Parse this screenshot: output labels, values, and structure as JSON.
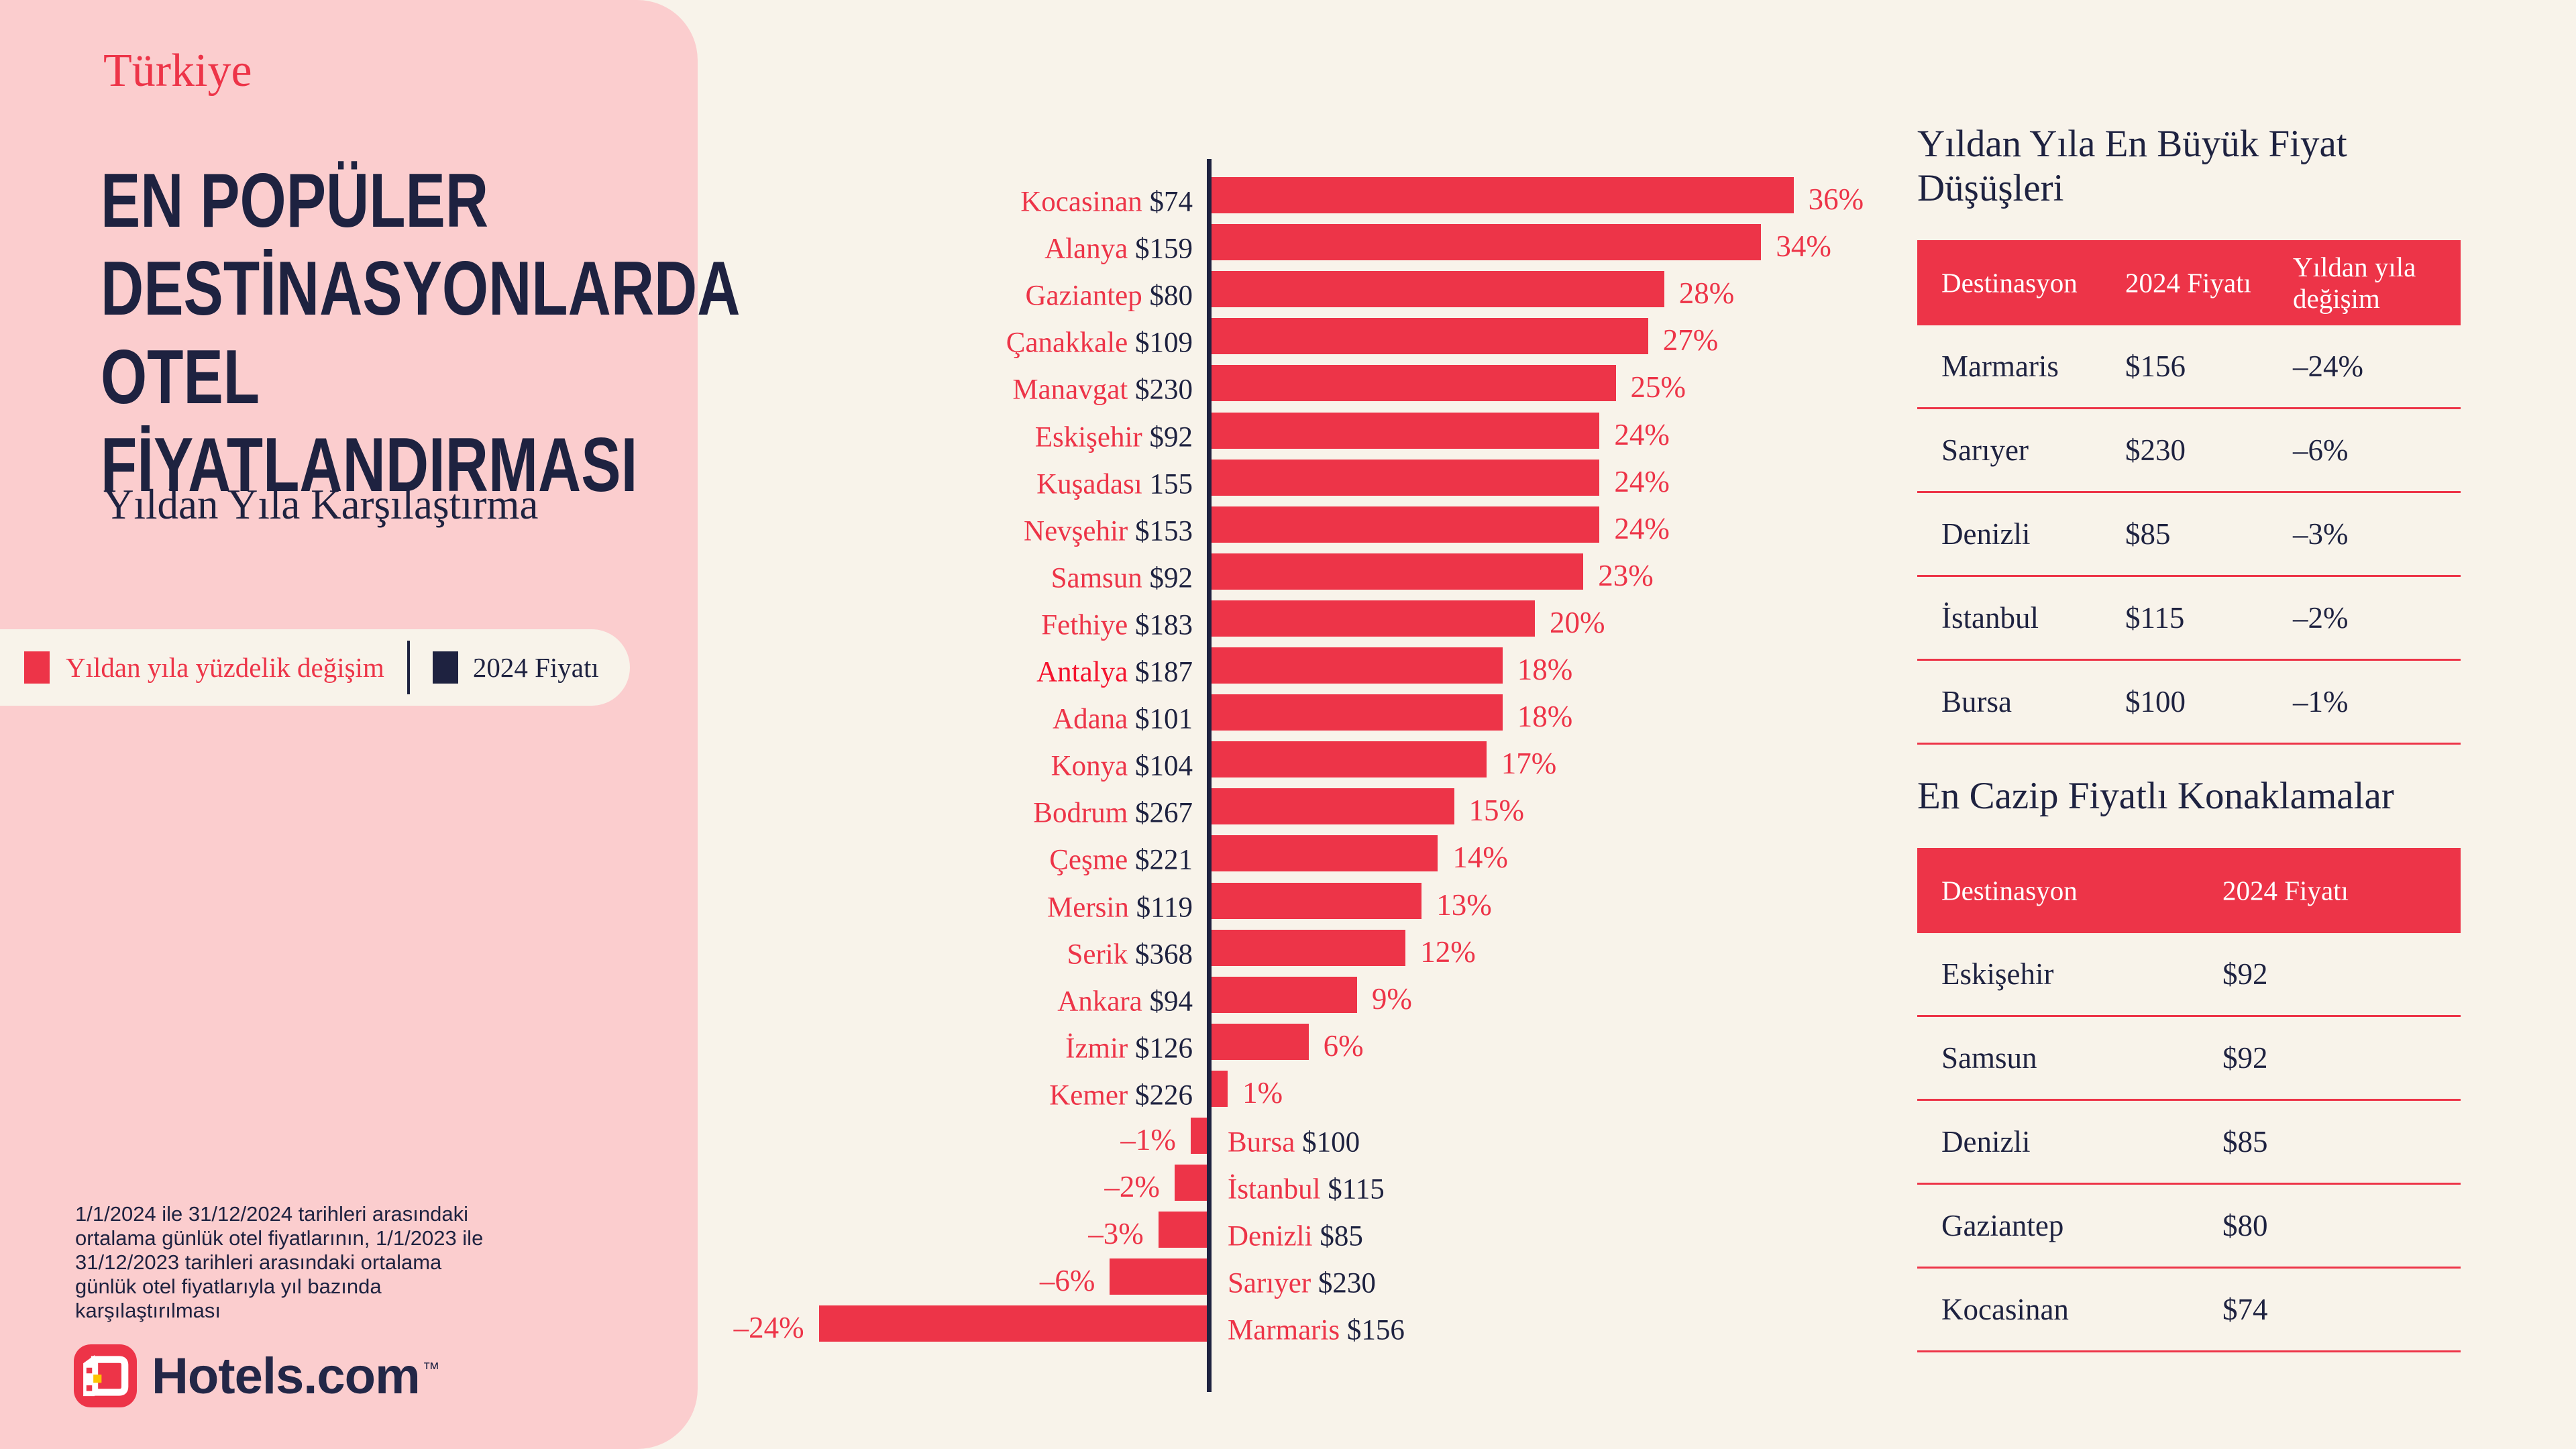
{
  "colors": {
    "background": "#F8F3EA",
    "panel_pink": "#FBCDCE",
    "accent_red": "#ED3448",
    "highlight_red": "#F5122D",
    "navy": "#1E2240",
    "table_header_text": "#FFFFFF",
    "logo_red": "#ED3448",
    "logo_yellow": "#FDC500"
  },
  "sidebar": {
    "kicker": "Türkiye",
    "headline": "EN POPÜLER\nDESTİNASYONLARDA\nOTEL\nFİYATLANDIRMASI",
    "subtitle": "Yıldan Yıla Karşılaştırma",
    "legend": {
      "change_label": "Yıldan yıla yüzdelik değişim",
      "price_label": "2024 Fiyatı"
    },
    "footnote": "1/1/2024 ile 31/12/2024 tarihleri arasındaki\nortalama günlük otel fiyatlarının, 1/1/2023 ile\n31/12/2023 tarihleri arasındaki ortalama\ngünlük otel fiyatlarıyla yıl bazında\nkarşılaştırılması",
    "logo_text": "Hotels.com",
    "logo_tm": "™"
  },
  "chart_data": {
    "type": "bar",
    "orientation": "horizontal",
    "unit": "percent year-over-year change",
    "xlim": [
      -24,
      36
    ],
    "grid": false,
    "categories": [
      "Kocasinan",
      "Alanya",
      "Gaziantep",
      "Çanakkale",
      "Manavgat",
      "Eskişehir",
      "Kuşadası",
      "Nevşehir",
      "Samsun",
      "Fethiye",
      "Antalya",
      "Adana",
      "Konya",
      "Bodrum",
      "Çeşme",
      "Mersin",
      "Serik",
      "Ankara",
      "İzmir",
      "Kemer",
      "Bursa",
      "İstanbul",
      "Denizli",
      "Sarıyer",
      "Marmaris"
    ],
    "values": [
      36,
      34,
      28,
      27,
      25,
      24,
      24,
      24,
      23,
      20,
      18,
      18,
      17,
      15,
      14,
      13,
      12,
      9,
      6,
      1,
      -1,
      -2,
      -3,
      -6,
      -24
    ],
    "pct_labels": [
      "36%",
      "34%",
      "28%",
      "27%",
      "25%",
      "24%",
      "24%",
      "24%",
      "23%",
      "20%",
      "18%",
      "18%",
      "17%",
      "15%",
      "14%",
      "13%",
      "12%",
      "9%",
      "6%",
      "1%",
      "–1%",
      "–2%",
      "–3%",
      "–6%",
      "–24%"
    ],
    "price_labels": [
      "$74",
      "$159",
      "$80",
      "$109",
      "$230",
      "$92",
      "155",
      "$153",
      "$92",
      "$183",
      "$187",
      "$101",
      "$104",
      "$267",
      "$221",
      "$119",
      "$368",
      "$94",
      "$126",
      "$226",
      "$100",
      "$115",
      "$85",
      "$230",
      "$156"
    ],
    "highlight_category": "Antalya"
  },
  "tables": [
    {
      "title": "Yıldan Yıla En Büyük Fiyat Düşüşleri",
      "columns": [
        "Destinasyon",
        "2024 Fiyatı",
        "Yıldan yıla\ndeğişim"
      ],
      "rows": [
        [
          "Marmaris",
          "$156",
          "–24%"
        ],
        [
          "Sarıyer",
          "$230",
          "–6%"
        ],
        [
          "Denizli",
          "$85",
          "–3%"
        ],
        [
          "İstanbul",
          "$115",
          "–2%"
        ],
        [
          "Bursa",
          "$100",
          "–1%"
        ]
      ]
    },
    {
      "title": "En Cazip Fiyatlı Konaklamalar",
      "columns": [
        "Destinasyon",
        "2024 Fiyatı"
      ],
      "rows": [
        [
          "Eskişehir",
          "$92"
        ],
        [
          "Samsun",
          "$92"
        ],
        [
          "Denizli",
          "$85"
        ],
        [
          "Gaziantep",
          "$80"
        ],
        [
          "Kocasinan",
          "$74"
        ]
      ]
    }
  ]
}
